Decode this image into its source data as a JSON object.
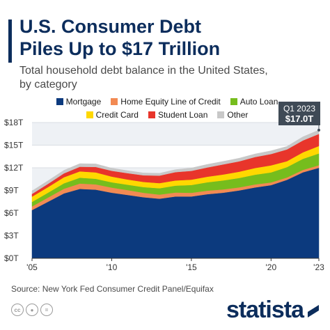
{
  "header": {
    "title_line1": "U.S. Consumer Debt",
    "title_line2": "Piles Up to $17 Trillion",
    "subtitle_line1": "Total household debt balance in the United States,",
    "subtitle_line2": "by category"
  },
  "colors": {
    "accent": "#0c2d5c",
    "grid": "#d9dde3",
    "band": "#eef1f5",
    "callout": "#3f4a56"
  },
  "legend_items": [
    {
      "label": "Mortgage",
      "color": "#0c3a7e"
    },
    {
      "label": "Home Equity Line of Credit",
      "color": "#f28a53"
    },
    {
      "label": "Auto Loan",
      "color": "#76bd1d"
    },
    {
      "label": "Credit Card",
      "color": "#ffd800"
    },
    {
      "label": "Student Loan",
      "color": "#e8352b"
    },
    {
      "label": "Other",
      "color": "#c8c8c8"
    }
  ],
  "callout": {
    "line1": "Q1 2023",
    "line2": "$17.0T"
  },
  "footer": {
    "source": "Source: New York Fed Consumer Credit Panel/Equifax",
    "brand": "statista",
    "cc_icons": [
      "cc-icon",
      "person-icon",
      "equals-icon"
    ]
  },
  "chart_data": {
    "type": "area",
    "stacked": true,
    "x": [
      2005,
      2006,
      2007,
      2008,
      2009,
      2010,
      2011,
      2012,
      2013,
      2014,
      2015,
      2016,
      2017,
      2018,
      2019,
      2020,
      2021,
      2022,
      2023
    ],
    "x_tick_labels": [
      "'05",
      "'10",
      "'15",
      "'20",
      "'23"
    ],
    "x_tick_values": [
      2005,
      2010,
      2015,
      2020,
      2023
    ],
    "y_tick_labels": [
      "$0T",
      "$3T",
      "$6T",
      "$9T",
      "$12T",
      "$15T",
      "$18T"
    ],
    "y_tick_values": [
      0,
      3,
      6,
      9,
      12,
      15,
      18
    ],
    "ylim": [
      0,
      18
    ],
    "xlim": [
      2005,
      2023
    ],
    "grid": true,
    "series": [
      {
        "name": "Mortgage",
        "values": [
          6.4,
          7.5,
          8.6,
          9.2,
          9.1,
          8.7,
          8.4,
          8.1,
          7.9,
          8.2,
          8.2,
          8.5,
          8.7,
          9.0,
          9.4,
          9.7,
          10.4,
          11.4,
          12.0
        ]
      },
      {
        "name": "Home Equity Line of Credit",
        "values": [
          0.48,
          0.55,
          0.62,
          0.71,
          0.7,
          0.68,
          0.65,
          0.59,
          0.55,
          0.52,
          0.49,
          0.47,
          0.44,
          0.41,
          0.39,
          0.36,
          0.32,
          0.32,
          0.34
        ]
      },
      {
        "name": "Auto Loan",
        "values": [
          0.6,
          0.65,
          0.72,
          0.78,
          0.74,
          0.7,
          0.71,
          0.75,
          0.84,
          0.92,
          1.03,
          1.11,
          1.19,
          1.24,
          1.3,
          1.33,
          1.37,
          1.47,
          1.56
        ]
      },
      {
        "name": "Credit Card",
        "values": [
          0.7,
          0.73,
          0.8,
          0.84,
          0.85,
          0.76,
          0.69,
          0.69,
          0.68,
          0.68,
          0.71,
          0.74,
          0.78,
          0.83,
          0.88,
          0.93,
          0.79,
          0.86,
          0.99
        ]
      },
      {
        "name": "Student Loan",
        "values": [
          0.36,
          0.44,
          0.52,
          0.61,
          0.72,
          0.76,
          0.84,
          0.87,
          1.0,
          1.11,
          1.16,
          1.23,
          1.34,
          1.38,
          1.46,
          1.51,
          1.56,
          1.58,
          1.6
        ]
      },
      {
        "name": "Other",
        "values": [
          0.4,
          0.41,
          0.41,
          0.41,
          0.41,
          0.35,
          0.33,
          0.32,
          0.3,
          0.33,
          0.38,
          0.4,
          0.4,
          0.41,
          0.41,
          0.42,
          0.39,
          0.48,
          0.51
        ]
      }
    ]
  }
}
